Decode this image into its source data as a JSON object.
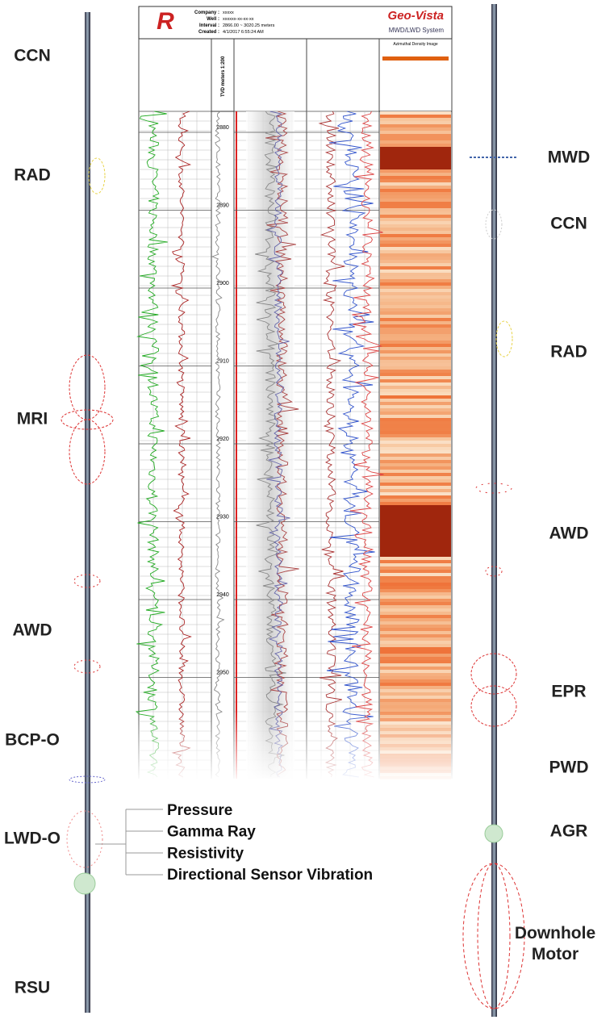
{
  "left_tool": {
    "labels": [
      "CCN",
      "RAD",
      "MRI",
      "AWD",
      "BCP-O",
      "LWD-O",
      "RSU"
    ]
  },
  "right_tool": {
    "labels": [
      "MWD",
      "CCN",
      "RAD",
      "AWD",
      "EPR",
      "PWD",
      "AGR",
      "Downhole Motor"
    ]
  },
  "lwd_o_sensors": [
    "Pressure",
    "Gamma Ray",
    "Resistivity",
    "Directional Sensor Vibration"
  ],
  "log": {
    "header": {
      "fields": [
        {
          "label": "Company :",
          "value": "xxxxx"
        },
        {
          "label": "Well :",
          "value": "xxxxxx-xx-xx-xx"
        },
        {
          "label": "Interval :",
          "value": "2866.00 ~ 3020.25 meters"
        },
        {
          "label": "Created :",
          "value": "4/1/2017 6:55:24 AM"
        }
      ],
      "brand": "Geo-Vista",
      "system": "MWD/LWD System",
      "depth_title": "TVD meters 1:200",
      "image_title": "Azimuthal Density Image"
    },
    "depths": [
      "2880",
      "2890",
      "2900",
      "2910",
      "2920",
      "2930",
      "2940",
      "2950"
    ]
  }
}
